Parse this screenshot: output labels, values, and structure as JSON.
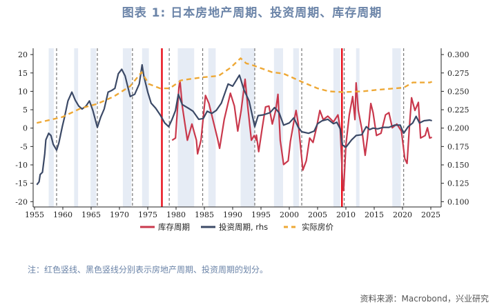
{
  "title": "图表 1:  日本房地产周期、投资周期、库存周期",
  "note": "注：红色竖线、黑色竖线分别表示房地产周期、投资周期的划分。",
  "source": "资料来源：Macrobond，兴业研究",
  "colors": {
    "inventory": "#c9384c",
    "investment": "#3b4966",
    "price": "#eea835",
    "band": "#e6ecf5",
    "red_divider": "#e8101c",
    "dash_divider": "#777777"
  },
  "chart_data": {
    "type": "line",
    "xlim": [
      1954.5,
      2027.5
    ],
    "x_ticks": [
      "1955",
      "1960",
      "1965",
      "1970",
      "1975",
      "1980",
      "1985",
      "1990",
      "1995",
      "2000",
      "2005",
      "2010",
      "2015",
      "2020",
      "2025"
    ],
    "left_axis": {
      "ylim": [
        -20,
        20
      ],
      "ticks": [
        "20",
        "15",
        "10",
        "5",
        "0",
        "-5",
        "-10",
        "-15",
        "-20"
      ]
    },
    "right_axis": {
      "ylim": [
        0.1,
        0.3
      ],
      "ticks": [
        "0.300",
        "0.275",
        "0.250",
        "0.225",
        "0.200",
        "0.175",
        "0.150",
        "0.125",
        "0.100"
      ]
    },
    "legend": {
      "placement": "bottom",
      "items": [
        "库存周期",
        "投资周期, rhs",
        "实际房价"
      ]
    },
    "shaded_periods": [
      [
        1957.5,
        1958.4
      ],
      [
        1962.0,
        1962.7
      ],
      [
        1964.9,
        1965.9
      ],
      [
        1970.6,
        1972.1
      ],
      [
        1974.0,
        1975.2
      ],
      [
        1980.3,
        1983.2
      ],
      [
        1985.7,
        1987.0
      ],
      [
        1991.4,
        1993.9
      ],
      [
        1997.3,
        1998.9
      ],
      [
        2000.7,
        2001.7
      ],
      [
        2007.8,
        2009.0
      ],
      [
        2011.8,
        2012.4
      ],
      [
        2018.2,
        2019.7
      ]
    ],
    "red_dividers": [
      1977.5,
      2009.3
    ],
    "dashed_dividers": [
      1958.9,
      1966.1,
      1972.3,
      1978.8,
      1984.7,
      1993.9,
      2002.2,
      2009.7,
      2020.2
    ],
    "series": [
      {
        "name": "库存周期",
        "axis": "left",
        "style": "solid",
        "points": [
          [
            1979.3,
            -3.3
          ],
          [
            1979.9,
            -2.7
          ],
          [
            1980.5,
            11
          ],
          [
            1980.7,
            12.9
          ],
          [
            1981.1,
            6
          ],
          [
            1982.0,
            -3.3
          ],
          [
            1982.8,
            1.1
          ],
          [
            1983.6,
            -3.3
          ],
          [
            1983.8,
            -7
          ],
          [
            1984.4,
            -3.3
          ],
          [
            1985.2,
            8.9
          ],
          [
            1985.8,
            6.7
          ],
          [
            1986.7,
            1.1
          ],
          [
            1987.3,
            -2.7
          ],
          [
            1987.7,
            -5.5
          ],
          [
            1988.5,
            2.3
          ],
          [
            1989.6,
            9.5
          ],
          [
            1990.3,
            6
          ],
          [
            1990.9,
            -0.8
          ],
          [
            1991.5,
            4.8
          ],
          [
            1992.2,
            13.3
          ],
          [
            1992.7,
            5.4
          ],
          [
            1993.3,
            -3.3
          ],
          [
            1993.8,
            -2
          ],
          [
            1994.2,
            -3.3
          ],
          [
            1994.2,
            -1.9
          ],
          [
            1994.6,
            -6.4
          ],
          [
            1995.2,
            -0.2
          ],
          [
            1995.8,
            5.75
          ],
          [
            1996.4,
            6
          ],
          [
            1997.0,
            1.1
          ],
          [
            1997.6,
            4.8
          ],
          [
            1998.0,
            9.2
          ],
          [
            1998.4,
            -3.3
          ],
          [
            1999.0,
            -9.9
          ],
          [
            1999.8,
            -8.9
          ],
          [
            2000.2,
            -3.6
          ],
          [
            2000.8,
            1.7
          ],
          [
            2001.2,
            4.8
          ],
          [
            2001.6,
            1.1
          ],
          [
            2002.4,
            -11.4
          ],
          [
            2003.0,
            -8.9
          ],
          [
            2003.6,
            -2.7
          ],
          [
            2004.2,
            -3.9
          ],
          [
            2004.8,
            0.1
          ],
          [
            2005.4,
            4.8
          ],
          [
            2006.0,
            2.3
          ],
          [
            2006.8,
            3.25
          ],
          [
            2007.8,
            1.7
          ],
          [
            2008.6,
            3.6
          ],
          [
            2009.0,
            -0.2
          ],
          [
            2009.4,
            -13.9
          ],
          [
            2009.6,
            -17
          ],
          [
            2010.0,
            -4.6
          ],
          [
            2010.6,
            3.6
          ],
          [
            2011.2,
            8.6
          ],
          [
            2011.6,
            2.3
          ],
          [
            2011.8,
            12.3
          ],
          [
            2012.2,
            4.8
          ],
          [
            2012.8,
            -0.2
          ],
          [
            2013.4,
            -7.4
          ],
          [
            2013.8,
            -2.7
          ],
          [
            2014.4,
            6.7
          ],
          [
            2014.8,
            4.2
          ],
          [
            2015.4,
            -2
          ],
          [
            2016.2,
            -1.4
          ],
          [
            2017.0,
            3.6
          ],
          [
            2017.6,
            4.2
          ],
          [
            2018.2,
            0.1
          ],
          [
            2019.0,
            1.1
          ],
          [
            2019.8,
            -0.8
          ],
          [
            2020.4,
            -8.3
          ],
          [
            2020.8,
            -9.6
          ],
          [
            2021.2,
            -0.2
          ],
          [
            2021.6,
            8.25
          ],
          [
            2022.2,
            4.8
          ],
          [
            2022.8,
            7
          ],
          [
            2023.2,
            -2.7
          ],
          [
            2024.0,
            -2
          ],
          [
            2024.4,
            0.1
          ],
          [
            2024.8,
            -2.7
          ],
          [
            2025.2,
            -2.5
          ]
        ]
      },
      {
        "name": "投资周期, rhs",
        "axis": "right",
        "style": "solid",
        "points": [
          [
            1955.4,
            0.123
          ],
          [
            1955.8,
            0.127
          ],
          [
            1956.0,
            0.137
          ],
          [
            1956.4,
            0.14
          ],
          [
            1956.8,
            0.165
          ],
          [
            1957.0,
            0.184
          ],
          [
            1957.5,
            0.193
          ],
          [
            1957.9,
            0.19
          ],
          [
            1958.3,
            0.178
          ],
          [
            1958.9,
            0.17
          ],
          [
            1959.3,
            0.18
          ],
          [
            1959.9,
            0.202
          ],
          [
            1960.3,
            0.215
          ],
          [
            1960.9,
            0.237
          ],
          [
            1961.6,
            0.249
          ],
          [
            1962.2,
            0.238
          ],
          [
            1962.8,
            0.23
          ],
          [
            1963.4,
            0.226
          ],
          [
            1964.1,
            0.23
          ],
          [
            1964.7,
            0.237
          ],
          [
            1965.3,
            0.224
          ],
          [
            1966.1,
            0.201
          ],
          [
            1966.7,
            0.215
          ],
          [
            1967.3,
            0.226
          ],
          [
            1968.0,
            0.249
          ],
          [
            1968.6,
            0.251
          ],
          [
            1969.2,
            0.254
          ],
          [
            1969.8,
            0.274
          ],
          [
            1970.4,
            0.28
          ],
          [
            1971.0,
            0.271
          ],
          [
            1971.9,
            0.243
          ],
          [
            1972.7,
            0.246
          ],
          [
            1973.5,
            0.26
          ],
          [
            1974.0,
            0.286
          ],
          [
            1974.3,
            0.271
          ],
          [
            1975.0,
            0.249
          ],
          [
            1975.6,
            0.234
          ],
          [
            1976.4,
            0.227
          ],
          [
            1977.2,
            0.218
          ],
          [
            1978.0,
            0.207
          ],
          [
            1978.7,
            0.202
          ],
          [
            1979.3,
            0.212
          ],
          [
            1979.9,
            0.224
          ],
          [
            1980.4,
            0.246
          ],
          [
            1981.1,
            0.232
          ],
          [
            1982.2,
            0.227
          ],
          [
            1983.0,
            0.223
          ],
          [
            1984.0,
            0.212
          ],
          [
            1984.8,
            0.213
          ],
          [
            1985.5,
            0.223
          ],
          [
            1986.3,
            0.22
          ],
          [
            1987.1,
            0.224
          ],
          [
            1988.0,
            0.234
          ],
          [
            1989.2,
            0.26
          ],
          [
            1990.0,
            0.257
          ],
          [
            1991.2,
            0.272
          ],
          [
            1992.0,
            0.252
          ],
          [
            1992.9,
            0.237
          ],
          [
            1993.9,
            0.202
          ],
          [
            1994.5,
            0.217
          ],
          [
            1995.4,
            0.218
          ],
          [
            1996.6,
            0.221
          ],
          [
            1997.4,
            0.228
          ],
          [
            1998.2,
            0.221
          ],
          [
            1999.0,
            0.204
          ],
          [
            2000.0,
            0.207
          ],
          [
            2000.8,
            0.214
          ],
          [
            2001.6,
            0.201
          ],
          [
            2002.2,
            0.195
          ],
          [
            2003.4,
            0.193
          ],
          [
            2004.4,
            0.196
          ],
          [
            2005.0,
            0.206
          ],
          [
            2005.8,
            0.21
          ],
          [
            2006.8,
            0.212
          ],
          [
            2007.8,
            0.206
          ],
          [
            2008.4,
            0.208
          ],
          [
            2009.0,
            0.199
          ],
          [
            2009.4,
            0.177
          ],
          [
            2010.0,
            0.174
          ],
          [
            2011.0,
            0.184
          ],
          [
            2011.8,
            0.19
          ],
          [
            2012.8,
            0.191
          ],
          [
            2013.6,
            0.202
          ],
          [
            2014.2,
            0.198
          ],
          [
            2014.8,
            0.2
          ],
          [
            2015.6,
            0.199
          ],
          [
            2016.6,
            0.201
          ],
          [
            2017.6,
            0.201
          ],
          [
            2018.6,
            0.204
          ],
          [
            2019.6,
            0.204
          ],
          [
            2020.2,
            0.193
          ],
          [
            2021.0,
            0.202
          ],
          [
            2021.8,
            0.207
          ],
          [
            2022.4,
            0.216
          ],
          [
            2023.0,
            0.207
          ],
          [
            2023.8,
            0.21
          ],
          [
            2024.8,
            0.211
          ],
          [
            2025.2,
            0.21
          ]
        ]
      },
      {
        "name": "实际房价",
        "axis": "right",
        "style": "dashed",
        "points": [
          [
            1955.4,
            0.207
          ],
          [
            1959.9,
            0.215
          ],
          [
            1963.2,
            0.227
          ],
          [
            1966.1,
            0.233
          ],
          [
            1969.0,
            0.243
          ],
          [
            1971.9,
            0.257
          ],
          [
            1973.9,
            0.276
          ],
          [
            1975.2,
            0.26
          ],
          [
            1977.2,
            0.254
          ],
          [
            1978.9,
            0.254
          ],
          [
            1980.9,
            0.265
          ],
          [
            1984.6,
            0.269
          ],
          [
            1987.5,
            0.271
          ],
          [
            1989.6,
            0.282
          ],
          [
            1991.4,
            0.295
          ],
          [
            1992.4,
            0.288
          ],
          [
            1993.0,
            0.287
          ],
          [
            1997.0,
            0.276
          ],
          [
            1999.0,
            0.274
          ],
          [
            2002.2,
            0.263
          ],
          [
            2005.0,
            0.254
          ],
          [
            2007.0,
            0.25
          ],
          [
            2009.4,
            0.249
          ],
          [
            2013.0,
            0.25
          ],
          [
            2015.4,
            0.252
          ],
          [
            2018.6,
            0.254
          ],
          [
            2020.2,
            0.255
          ],
          [
            2021.8,
            0.262
          ],
          [
            2024.8,
            0.262
          ],
          [
            2025.2,
            0.263
          ]
        ]
      }
    ]
  }
}
